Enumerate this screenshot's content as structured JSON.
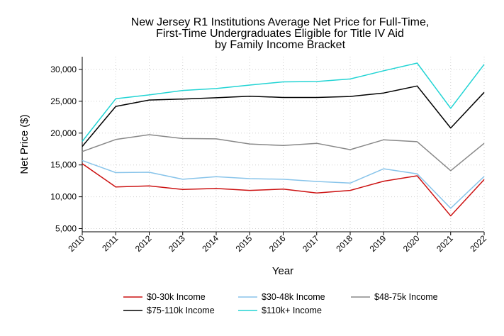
{
  "chart_data": {
    "type": "line",
    "title_lines": [
      "New Jersey R1 Institutions Average Net Price for Full-Time,",
      "First-Time Undergraduates Eligible for Title IV Aid",
      "by Family Income Bracket"
    ],
    "xlabel": "Year",
    "ylabel": "Net Price ($)",
    "x": [
      2010,
      2011,
      2012,
      2013,
      2014,
      2015,
      2016,
      2017,
      2018,
      2019,
      2020,
      2021,
      2022
    ],
    "x_tick_labels": [
      "2010",
      "2011",
      "2012",
      "2013",
      "2014",
      "2015",
      "2016",
      "2017",
      "2018",
      "2019",
      "2020",
      "2021",
      "2022"
    ],
    "y_ticks": [
      5000,
      10000,
      15000,
      20000,
      25000,
      30000
    ],
    "y_tick_labels": [
      "5,000",
      "10,000",
      "15,000",
      "20,000",
      "25,000",
      "30,000"
    ],
    "ylim": [
      4500,
      32000
    ],
    "grid": true,
    "legend_position": "bottom",
    "series": [
      {
        "name": "$0-30k Income",
        "color": "#cc1111",
        "values": [
          15200,
          11550,
          11700,
          11150,
          11300,
          11000,
          11200,
          10600,
          11000,
          12450,
          13300,
          7000,
          12700
        ]
      },
      {
        "name": "$30-48k Income",
        "color": "#88c4ea",
        "values": [
          15700,
          13800,
          13850,
          12750,
          13150,
          12850,
          12750,
          12400,
          12150,
          14400,
          13600,
          8200,
          13200
        ]
      },
      {
        "name": "$48-75k Income",
        "color": "#888888",
        "values": [
          17100,
          19000,
          19750,
          19150,
          19100,
          18300,
          18050,
          18400,
          17400,
          18950,
          18650,
          14100,
          18400
        ]
      },
      {
        "name": "$75-110k Income",
        "color": "#000000",
        "values": [
          17900,
          24200,
          25200,
          25350,
          25550,
          25800,
          25600,
          25600,
          25750,
          26300,
          27400,
          20800,
          26400
        ]
      },
      {
        "name": "$110k+ Income",
        "color": "#22d4d4",
        "values": [
          18700,
          25400,
          26000,
          26700,
          27000,
          27550,
          28050,
          28100,
          28500,
          29800,
          31000,
          23900,
          30800
        ]
      }
    ]
  }
}
